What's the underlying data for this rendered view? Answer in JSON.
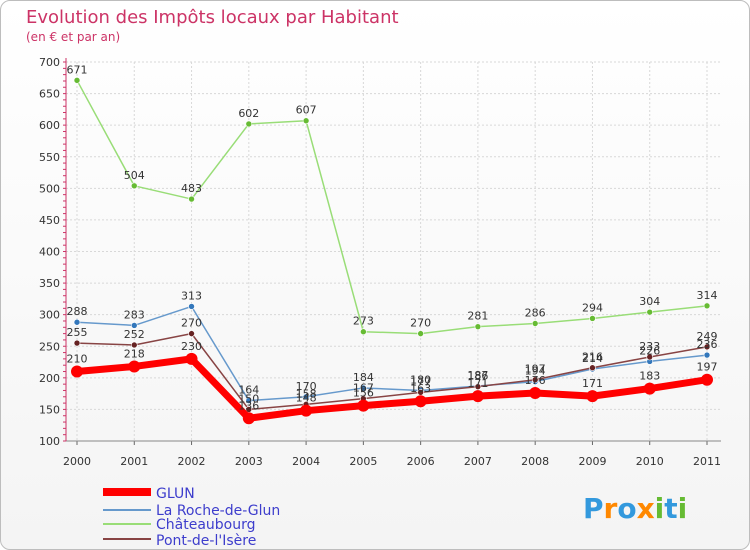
{
  "chart_data": {
    "type": "line",
    "title": "Evolution des Impôts locaux par Habitant",
    "subtitle": "(en € et par an)",
    "x": [
      "2000",
      "2001",
      "2002",
      "2003",
      "2004",
      "2005",
      "2006",
      "2007",
      "2008",
      "2009",
      "2010",
      "2011"
    ],
    "ylim": [
      100,
      700
    ],
    "yticks": [
      "100",
      "150",
      "200",
      "250",
      "300",
      "350",
      "400",
      "450",
      "500",
      "550",
      "600",
      "650",
      "700"
    ],
    "series": [
      {
        "name": "Châteaubourg",
        "color": "#99dd77",
        "marker": "#66bb33",
        "width": 1.5,
        "values": [
          671,
          504,
          483,
          602,
          607,
          273,
          270,
          281,
          286,
          294,
          304,
          314
        ],
        "labels": [
          "671",
          "504",
          "483",
          "602",
          "607",
          "273",
          "270",
          "281",
          "286",
          "294",
          "304",
          "314"
        ]
      },
      {
        "name": "La Roche-de-Glun",
        "color": "#6699cc",
        "marker": "#3377bb",
        "width": 1.5,
        "values": [
          288,
          283,
          313,
          164,
          170,
          184,
          180,
          187,
          194,
          214,
          226,
          236
        ],
        "labels": [
          "288",
          "283",
          "313",
          "164",
          "170",
          "184",
          "180",
          "187",
          "194",
          "214",
          "226",
          "236"
        ]
      },
      {
        "name": "Pont-de-l'Isère",
        "color": "#884444",
        "marker": "#662222",
        "width": 1.5,
        "values": [
          255,
          252,
          270,
          150,
          158,
          167,
          177,
          186,
          197,
          216,
          233,
          249
        ],
        "labels": [
          "255",
          "252",
          "270",
          "150",
          "158",
          "167",
          "177",
          "186",
          "197",
          "216",
          "233",
          "249"
        ]
      },
      {
        "name": "GLUN",
        "color": "#ff0000",
        "marker": "#ff0000",
        "width": 7,
        "values": [
          210,
          218,
          230,
          136,
          148,
          156,
          163,
          171,
          176,
          171,
          183,
          197
        ],
        "labels": [
          "210",
          "218",
          "230",
          "136",
          "148",
          "156",
          "163",
          "171",
          "176",
          "171",
          "183",
          "197"
        ]
      }
    ],
    "legend": [
      "GLUN",
      "La Roche-de-Glun",
      "Châteaubourg",
      "Pont-de-l'Isère"
    ],
    "legend_colors": [
      "#ff0000",
      "#6699cc",
      "#99dd77",
      "#884444"
    ]
  },
  "logo": {
    "text": "Proxiti"
  }
}
